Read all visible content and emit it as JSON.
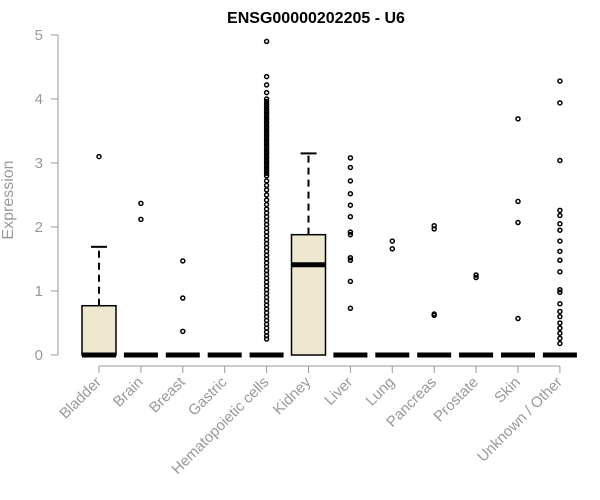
{
  "chart_data": {
    "type": "box",
    "title": "ENSG00000202205 - U6",
    "xlabel": "",
    "ylabel": "Expression",
    "ylim": [
      0,
      5
    ],
    "yticks": [
      "0",
      "1",
      "2",
      "3",
      "4",
      "5"
    ],
    "box_fill": "#ede8cf",
    "box_stroke": "#000000",
    "axis_color": "#999999",
    "categories": [
      "Bladder",
      "Brain",
      "Breast",
      "Gastric",
      "Hematopoietic cells",
      "Kidney",
      "Liver",
      "Lung",
      "Pancreas",
      "Prostate",
      "Skin",
      "Unknown / Other"
    ],
    "boxes": [
      {
        "category": "Bladder",
        "q1": 0,
        "median": 0,
        "q3": 0.77,
        "whisker_low": 0,
        "whisker_high": 1.69,
        "outliers": [
          3.1
        ]
      },
      {
        "category": "Brain",
        "q1": 0,
        "median": 0,
        "q3": 0,
        "whisker_low": 0,
        "whisker_high": 0,
        "outliers": [
          2.37,
          2.12
        ]
      },
      {
        "category": "Breast",
        "q1": 0,
        "median": 0,
        "q3": 0,
        "whisker_low": 0,
        "whisker_high": 0,
        "outliers": [
          1.47,
          0.89,
          0.37
        ]
      },
      {
        "category": "Gastric",
        "q1": 0,
        "median": 0,
        "q3": 0,
        "whisker_low": 0,
        "whisker_high": 0,
        "outliers": []
      },
      {
        "category": "Hematopoietic cells",
        "q1": 0,
        "median": 0,
        "q3": 0,
        "whisker_low": 0,
        "whisker_high": 0,
        "outliers": [
          4.9,
          4.35,
          4.22,
          4.1,
          4.0,
          3.96,
          3.92,
          3.88,
          3.84,
          3.8,
          3.76,
          3.72,
          3.68,
          3.64,
          3.6,
          3.56,
          3.52,
          3.48,
          3.44,
          3.4,
          3.36,
          3.32,
          3.28,
          3.24,
          3.2,
          3.16,
          3.12,
          3.08,
          3.04,
          3.0,
          2.96,
          2.92,
          2.88,
          2.84,
          2.8,
          2.72,
          2.65,
          2.58,
          2.5,
          2.42,
          2.35,
          2.28,
          2.22,
          2.16,
          2.1,
          2.04,
          1.98,
          1.92,
          1.86,
          1.8,
          1.74,
          1.68,
          1.62,
          1.56,
          1.5,
          1.44,
          1.38,
          1.32,
          1.26,
          1.2,
          1.14,
          1.08,
          1.02,
          0.96,
          0.9,
          0.84,
          0.78,
          0.72,
          0.66,
          0.6,
          0.54,
          0.48,
          0.42,
          0.36,
          0.3,
          0.25
        ]
      },
      {
        "category": "Kidney",
        "q1": 0,
        "median": 1.41,
        "q3": 1.88,
        "whisker_low": 0,
        "whisker_high": 3.15,
        "outliers": []
      },
      {
        "category": "Liver",
        "q1": 0,
        "median": 0,
        "q3": 0,
        "whisker_low": 0,
        "whisker_high": 0,
        "outliers": [
          3.08,
          2.93,
          2.72,
          2.52,
          2.34,
          2.16,
          1.92,
          1.88,
          1.52,
          1.48,
          1.15,
          0.73
        ]
      },
      {
        "category": "Lung",
        "q1": 0,
        "median": 0,
        "q3": 0,
        "whisker_low": 0,
        "whisker_high": 0,
        "outliers": [
          1.78,
          1.66
        ]
      },
      {
        "category": "Pancreas",
        "q1": 0,
        "median": 0,
        "q3": 0,
        "whisker_low": 0,
        "whisker_high": 0,
        "outliers": [
          2.02,
          1.97,
          0.64,
          0.62
        ]
      },
      {
        "category": "Prostate",
        "q1": 0,
        "median": 0,
        "q3": 0,
        "whisker_low": 0,
        "whisker_high": 0,
        "outliers": [
          1.25,
          1.21
        ]
      },
      {
        "category": "Skin",
        "q1": 0,
        "median": 0,
        "q3": 0,
        "whisker_low": 0,
        "whisker_high": 0,
        "outliers": [
          3.69,
          2.4,
          2.07,
          0.57
        ]
      },
      {
        "category": "Unknown / Other",
        "q1": 0,
        "median": 0,
        "q3": 0,
        "whisker_low": 0,
        "whisker_high": 0,
        "outliers": [
          4.28,
          3.94,
          3.04,
          2.26,
          2.18,
          2.05,
          1.95,
          1.78,
          1.62,
          1.48,
          1.3,
          1.02,
          0.98,
          0.8,
          0.68,
          0.6,
          0.5,
          0.42,
          0.34,
          0.26,
          0.18
        ]
      }
    ]
  }
}
